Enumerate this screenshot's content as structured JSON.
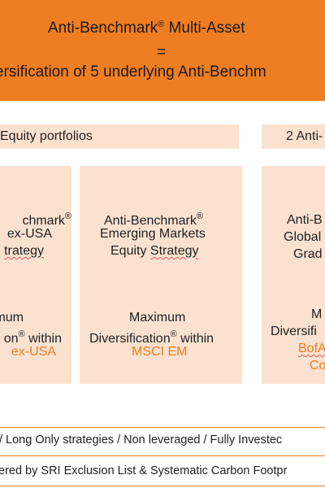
{
  "banner": {
    "title": "Anti-Benchmark",
    "title_suffix": " Multi-Asset",
    "equals": "=",
    "subtitle": "ersification of 5 underlying Anti-Benchm",
    "color": "#ef7d22"
  },
  "sections": {
    "equity_label": "Equity portfolios",
    "fixed_income_label": "2 Anti-"
  },
  "cards": {
    "left": {
      "line1": "chmark",
      "line2": " ex-USA",
      "line3": "trategy",
      "line4": "mum",
      "line5": "on",
      "line5_suffix": " within",
      "line6": " ex-USA"
    },
    "middle": {
      "line1": "Anti-Benchmark",
      "line2": "Emerging Markets",
      "line3_a": "Equity ",
      "line3_b": "Strategy",
      "line4": "Maximum",
      "line5": "Diversification",
      "line5_suffix": " within",
      "line6": "MSCI EM"
    },
    "right": {
      "line1": "Anti-B",
      "line2": "Global",
      "line3": "Grad",
      "line4": "M",
      "line5": "Diversifi",
      "line6": "BofA",
      "line7": "Co"
    }
  },
  "footer": {
    "line1": "/  Long Only strategies /  Non leveraged / Fully Investec",
    "line2": "ered by SRI Exclusion List & Systematic Carbon Footpr"
  },
  "symbols": {
    "registered": "®"
  }
}
